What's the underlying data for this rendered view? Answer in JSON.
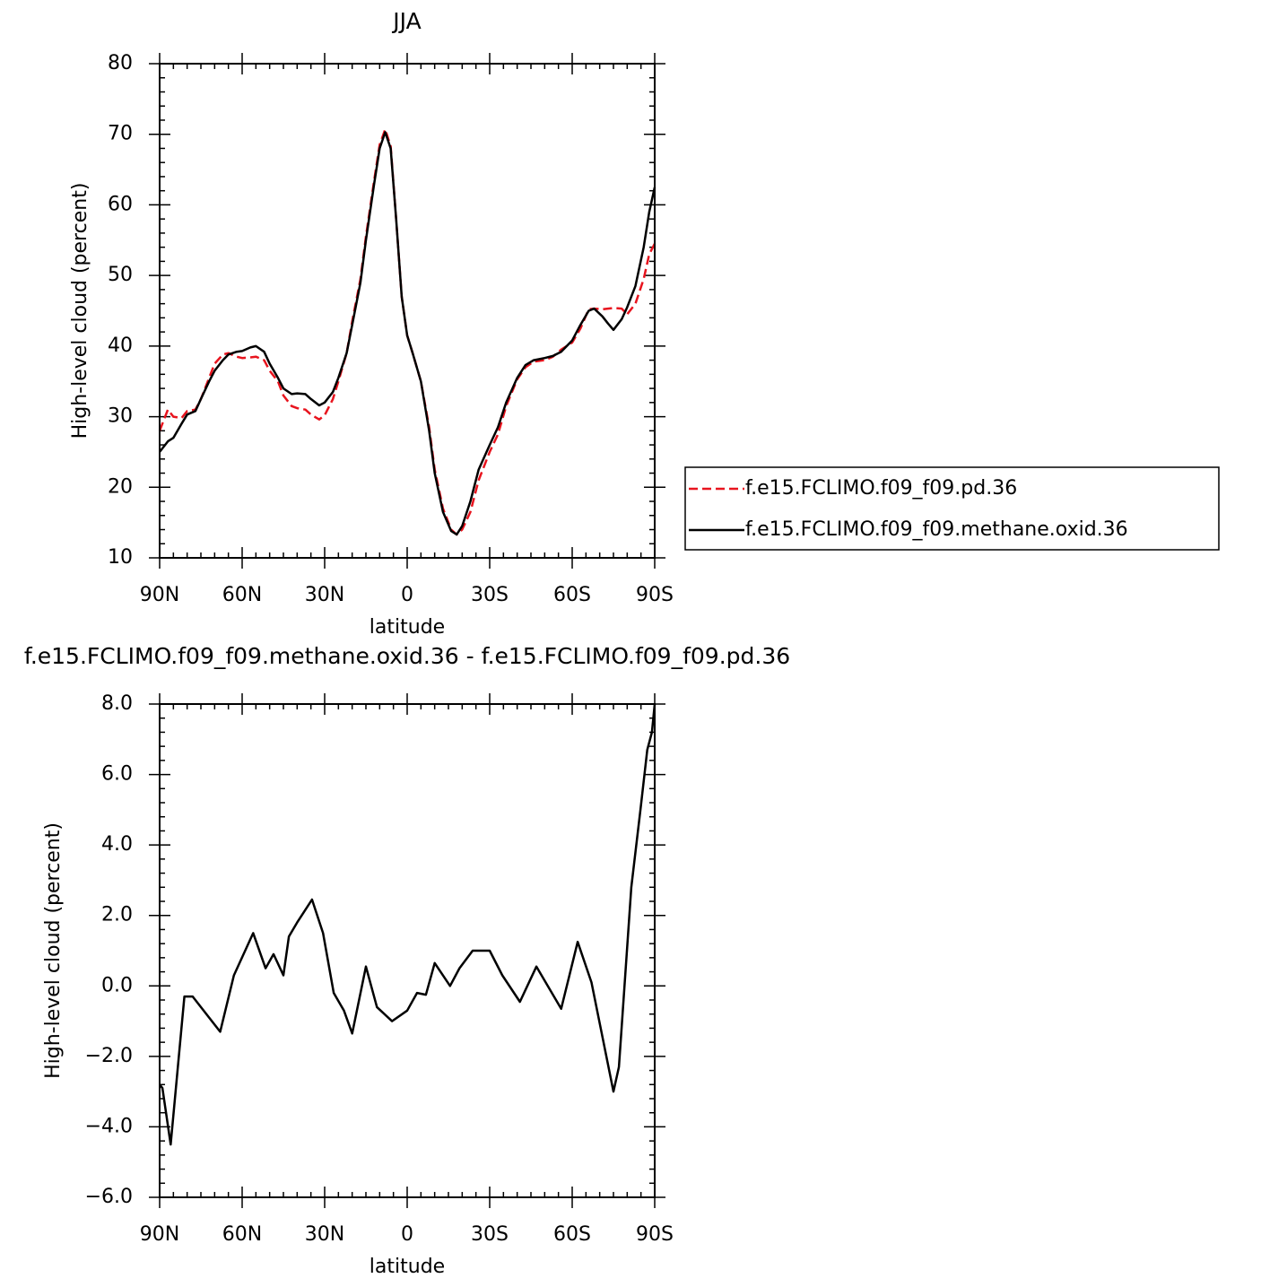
{
  "chart_data": [
    {
      "type": "line",
      "title": "JJA",
      "xlabel": "latitude",
      "ylabel": "High-level cloud (percent)",
      "x": [
        90,
        87,
        85,
        82,
        80,
        77,
        75,
        72,
        70,
        67,
        65,
        62,
        60,
        57,
        55,
        52,
        50,
        47,
        45,
        42,
        40,
        37,
        35,
        32,
        30,
        27,
        25,
        22,
        20,
        17,
        15,
        12,
        10,
        8,
        6,
        4,
        2,
        0,
        -2,
        -5,
        -8,
        -10,
        -13,
        -16,
        -18,
        -20,
        -23,
        -26,
        -30,
        -33,
        -36,
        -40,
        -43,
        -46,
        -50,
        -53,
        -56,
        -60,
        -63,
        -66,
        -68,
        -71,
        -73,
        -75,
        -78,
        -80,
        -83,
        -86,
        -88,
        -90
      ],
      "series": [
        {
          "name": "f.e15.FCLIMO.f09_f09.pd.36",
          "color": "#e8141e",
          "dash": true,
          "values": [
            28,
            31,
            30,
            29.8,
            30.8,
            31,
            32.5,
            35.5,
            37.5,
            38.8,
            39,
            38.5,
            38.3,
            38.4,
            38.5,
            38,
            36.5,
            35,
            33,
            31.5,
            31.2,
            31,
            30.3,
            29.6,
            30.2,
            32.5,
            35,
            39,
            43.5,
            49.5,
            55.5,
            63.5,
            68.5,
            70.7,
            68.3,
            58,
            47,
            41.5,
            39,
            35,
            28.5,
            22.5,
            17,
            14,
            13.3,
            14,
            16.5,
            21,
            25,
            27.5,
            31.5,
            35.3,
            37,
            37.8,
            38,
            38.5,
            39.5,
            40.5,
            42.5,
            45.2,
            45.3,
            45.2,
            45.3,
            45.4,
            45.3,
            44.5,
            46,
            49.5,
            53,
            54.5
          ]
        },
        {
          "name": "f.e15.FCLIMO.f09_f09.methane.oxid.36",
          "color": "#000000",
          "dash": false,
          "values": [
            25,
            26.5,
            27,
            29,
            30.3,
            30.8,
            32.5,
            35,
            36.5,
            38,
            38.8,
            39.2,
            39.3,
            39.8,
            40,
            39.2,
            37.5,
            35.5,
            34,
            33.2,
            33.3,
            33.2,
            32.5,
            31.6,
            32,
            33.5,
            35.5,
            39,
            43,
            49,
            55,
            63,
            68,
            70.3,
            68,
            58,
            47,
            41.5,
            39,
            35,
            28,
            22,
            16.5,
            13.8,
            13.3,
            14.5,
            18,
            22.5,
            26,
            28.5,
            32,
            35.5,
            37.3,
            38,
            38.3,
            38.6,
            39.2,
            40.8,
            43,
            45,
            45.3,
            44.2,
            43.2,
            42.3,
            43.8,
            45.5,
            48.5,
            54,
            59,
            62.5
          ]
        }
      ],
      "xlim": [
        90,
        -90
      ],
      "xticks": [
        {
          "value": 90,
          "label": "90N"
        },
        {
          "value": 60,
          "label": "60N"
        },
        {
          "value": 30,
          "label": "30N"
        },
        0,
        {
          "value": -30,
          "label": "30S"
        },
        {
          "value": -60,
          "label": "60S"
        },
        {
          "value": -90,
          "label": "90S"
        }
      ],
      "ylim": [
        10,
        80
      ],
      "yticks": [
        10,
        20,
        30,
        40,
        50,
        60,
        70,
        80
      ],
      "x_minor_per_major": 6,
      "y_minor_per_major": 5,
      "legend": "right"
    },
    {
      "type": "line",
      "title": "f.e15.FCLIMO.f09_f09.methane.oxid.36 - f.e15.FCLIMO.f09_f09.pd.36",
      "xlabel": "latitude",
      "ylabel": "High-level cloud (percent)",
      "x": [
        90,
        89,
        86,
        81,
        78,
        68,
        63,
        56,
        51.5,
        48.6,
        45,
        43,
        40,
        34.6,
        30.6,
        26.7,
        23,
        20,
        15,
        11,
        5.5,
        0,
        -3.6,
        -6.8,
        -10,
        -15.6,
        -19,
        -23.8,
        -30,
        -34.6,
        -41,
        -47,
        -56,
        -62,
        -67,
        -75,
        -77,
        -81.5,
        -84.8,
        -87.3,
        -89,
        -90
      ],
      "values": [
        -2.8,
        -2.9,
        -4.5,
        -0.3,
        -0.3,
        -1.3,
        0.3,
        1.5,
        0.5,
        0.9,
        0.3,
        1.4,
        1.8,
        2.45,
        1.5,
        -0.2,
        -0.7,
        -1.35,
        0.55,
        -0.6,
        -1.0,
        -0.7,
        -0.2,
        -0.25,
        0.65,
        0.0,
        0.5,
        1.0,
        1.0,
        0.3,
        -0.45,
        0.55,
        -0.65,
        1.25,
        0.1,
        -3.0,
        -2.3,
        2.8,
        5.0,
        6.7,
        7.2,
        8.0
      ],
      "color": "#000000",
      "xlim": [
        90,
        -90
      ],
      "xticks": [
        {
          "value": 90,
          "label": "90N"
        },
        {
          "value": 60,
          "label": "60N"
        },
        {
          "value": 30,
          "label": "30N"
        },
        0,
        {
          "value": -30,
          "label": "30S"
        },
        {
          "value": -60,
          "label": "60S"
        },
        {
          "value": -90,
          "label": "90S"
        }
      ],
      "ylim": [
        -6,
        8
      ],
      "yticks": [
        {
          "value": -6,
          "label": "−6.0"
        },
        {
          "value": -4,
          "label": "−4.0"
        },
        {
          "value": -2,
          "label": "−2.0"
        },
        {
          "value": 0,
          "label": "0.0"
        },
        {
          "value": 2,
          "label": "2.0"
        },
        {
          "value": 4,
          "label": "4.0"
        },
        {
          "value": 6,
          "label": "6.0"
        },
        {
          "value": 8,
          "label": "8.0"
        }
      ],
      "x_minor_per_major": 6,
      "y_minor_per_major": 5
    }
  ]
}
